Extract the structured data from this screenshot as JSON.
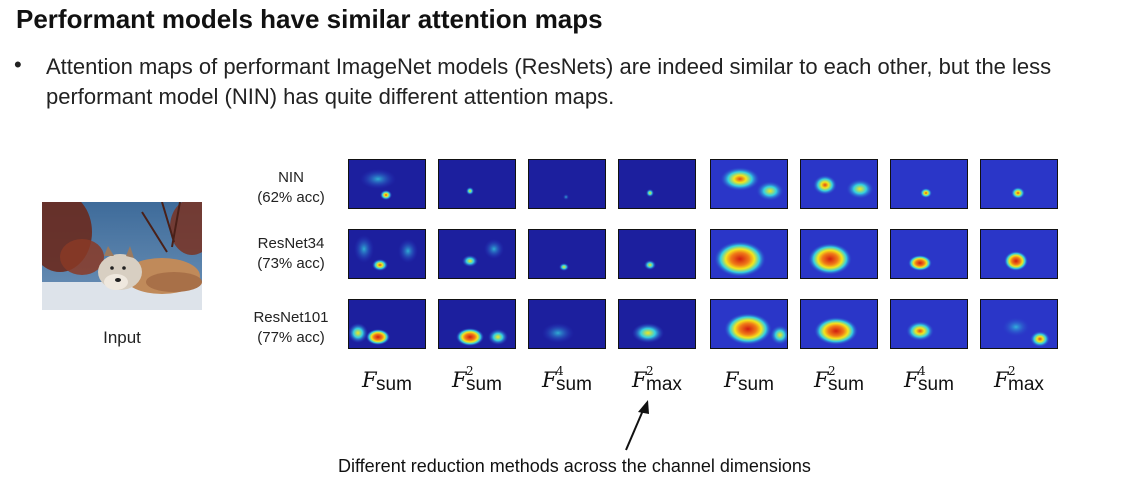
{
  "slide": {
    "title": "Performant models have similar attention maps",
    "bullet": "Attention maps of performant ImageNet models (ResNets) are indeed similar to each other, but the less performant model (NIN) has quite different attention maps.",
    "input_label": "Input",
    "caption": "Different reduction methods across the channel dimensions"
  },
  "rows": [
    {
      "name": "NIN",
      "acc": "(62% acc)"
    },
    {
      "name": "ResNet34",
      "acc": "(73% acc)"
    },
    {
      "name": "ResNet101",
      "acc": "(77% acc)"
    }
  ],
  "columns": [
    {
      "base": "F",
      "sup": "",
      "sub": "sum"
    },
    {
      "base": "F",
      "sup": "2",
      "sub": "sum"
    },
    {
      "base": "F",
      "sup": "4",
      "sub": "sum"
    },
    {
      "base": "F",
      "sup": "2",
      "sub": "max"
    },
    {
      "base": "F",
      "sup": "",
      "sub": "sum"
    },
    {
      "base": "F",
      "sup": "2",
      "sub": "sum"
    },
    {
      "base": "F",
      "sup": "4",
      "sub": "sum"
    },
    {
      "base": "F",
      "sup": "2",
      "sub": "max"
    }
  ],
  "colors": {
    "map_background": "#2a36c8",
    "map_dark": "#1c1f9e",
    "hot_red": "#d01c10",
    "hot_yellow": "#f4e51c",
    "hot_cyan": "#34d0e0"
  }
}
